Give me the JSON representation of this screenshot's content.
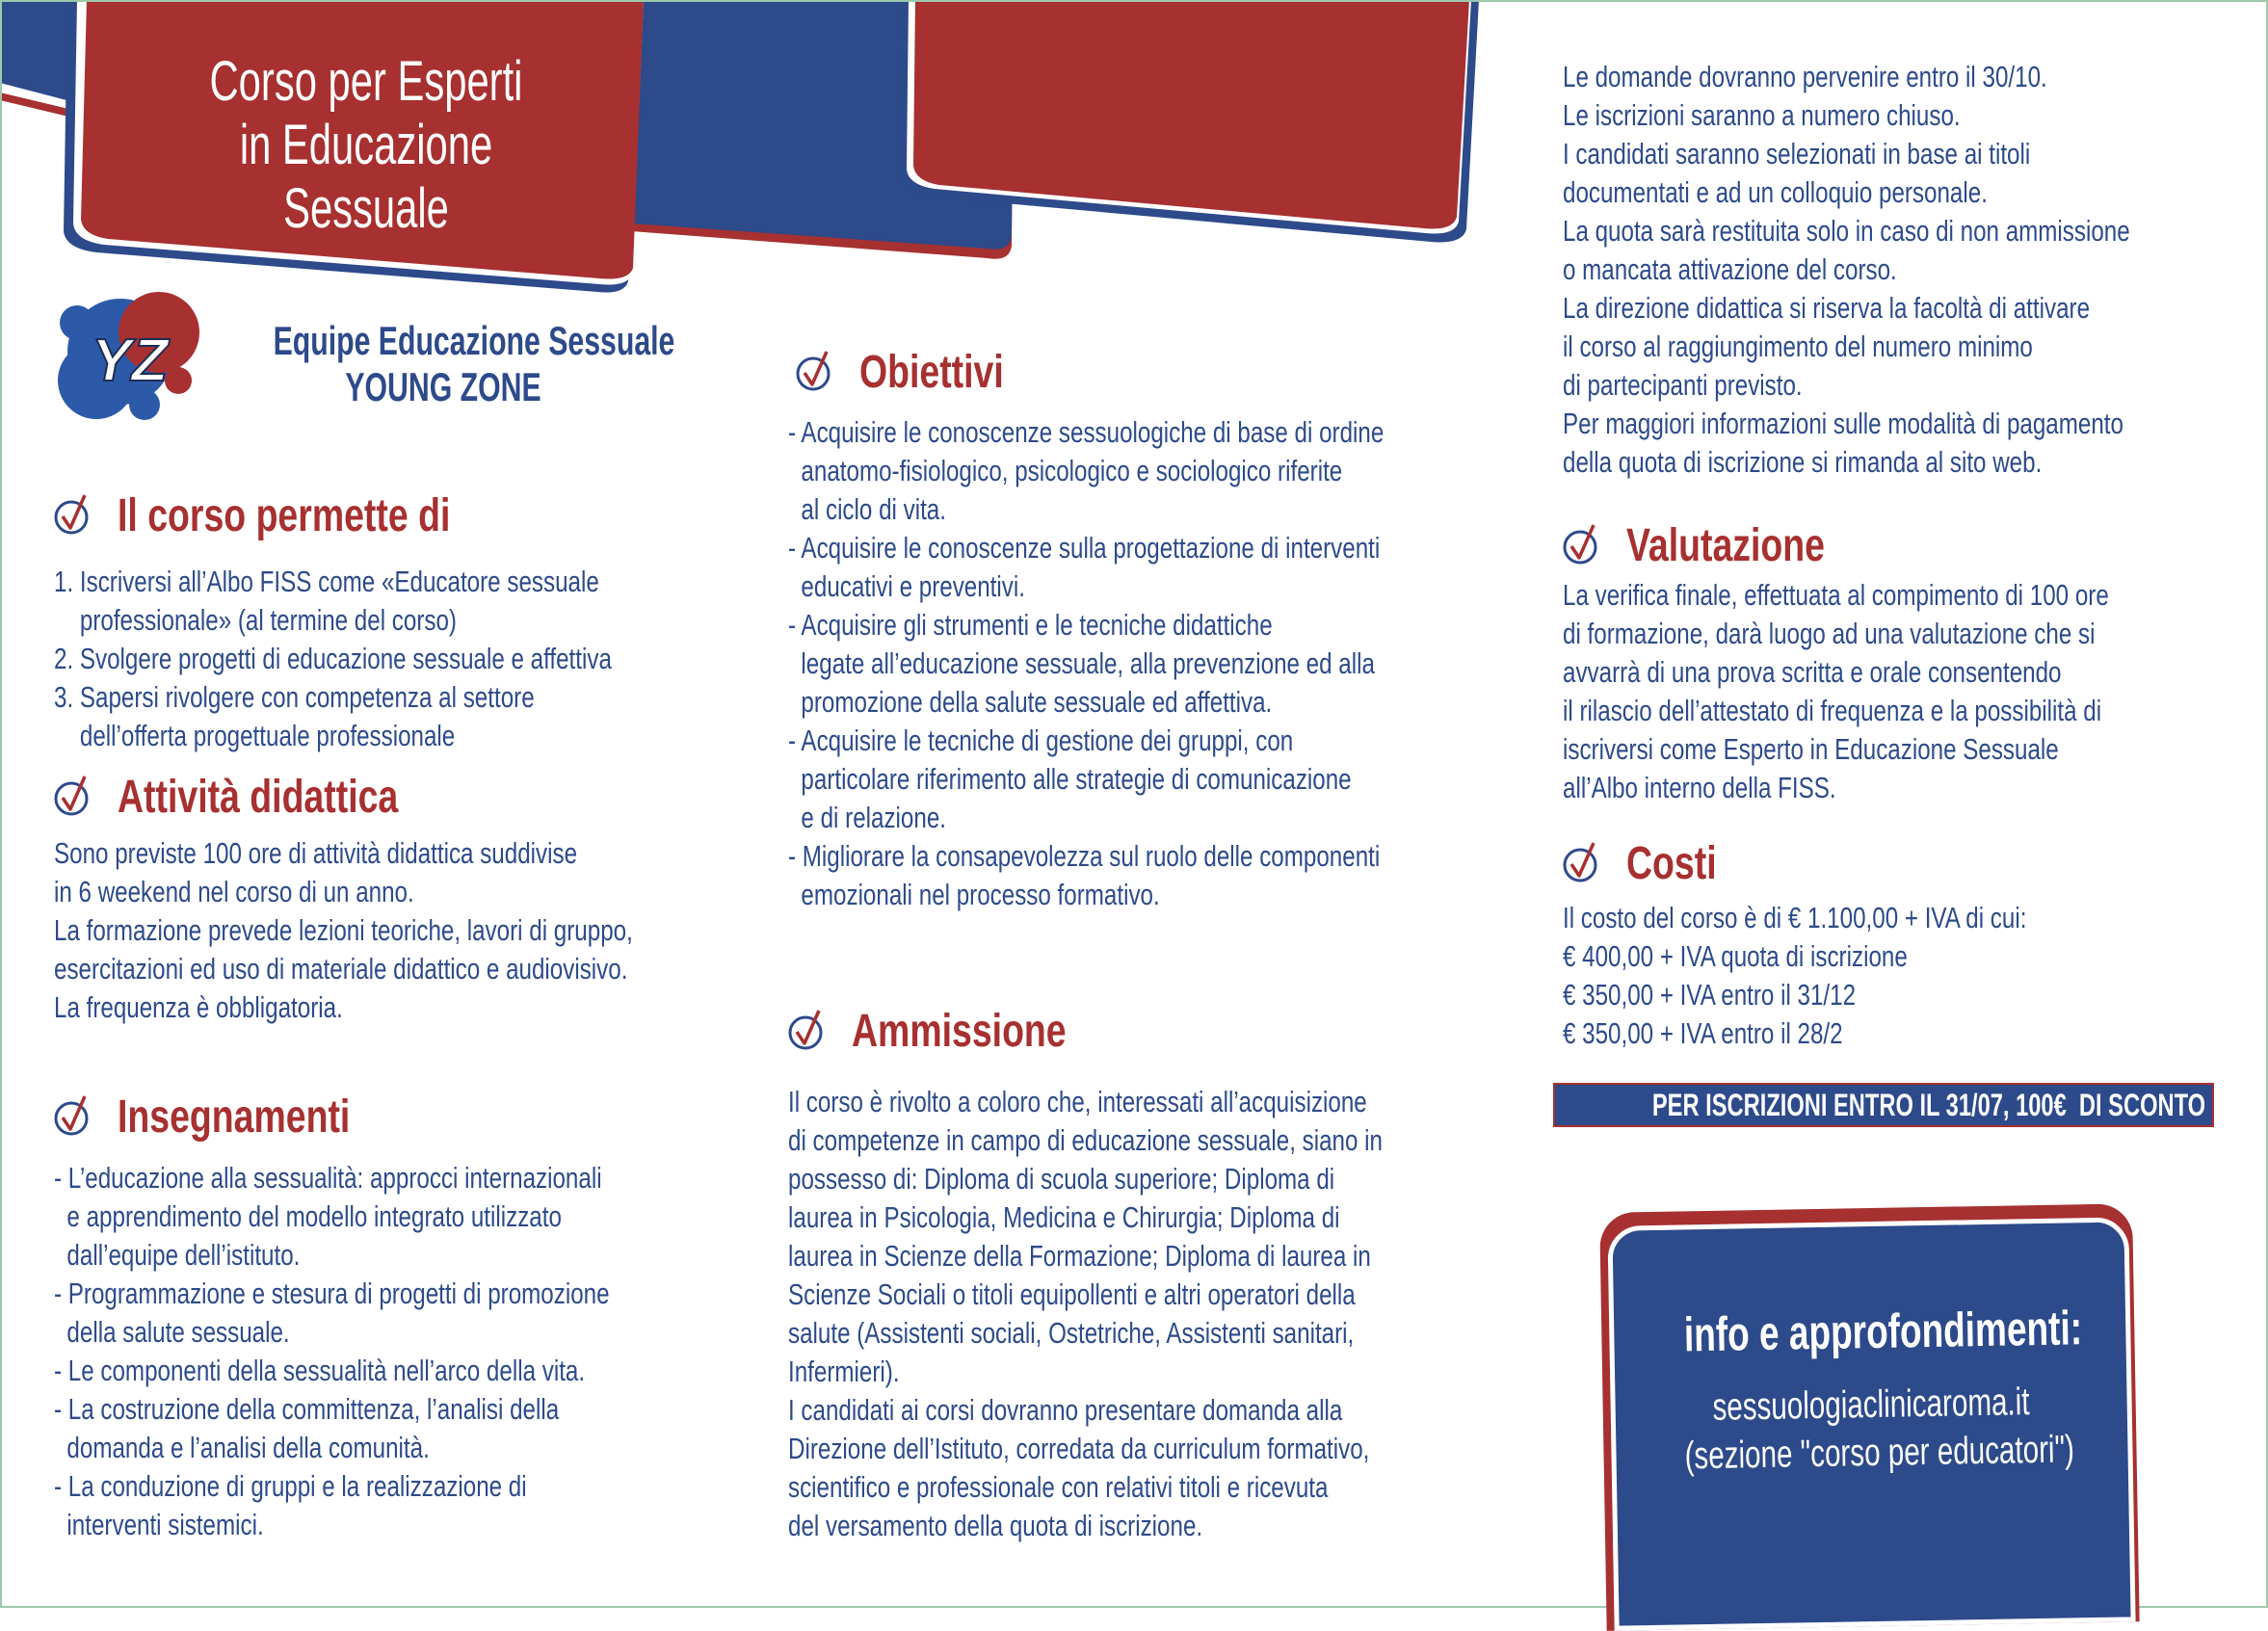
{
  "colors": {
    "red": "#a73030",
    "blue": "#2d4a8a"
  },
  "header": {
    "title_lines": [
      "Corso per Esperti",
      "in Educazione",
      "Sessuale"
    ]
  },
  "logo": {
    "text": "YZ",
    "lines": [
      "Equipe Educazione Sessuale",
      "YOUNG ZONE"
    ]
  },
  "icons": {
    "section": "check-circle-icon"
  },
  "sections": {
    "corso": {
      "title": "Il corso permette di",
      "lines": [
        "1. Iscriversi all’Albo FISS come «Educatore sessuale",
        "    professionale» (al termine del corso)",
        "2. Svolgere progetti di educazione sessuale e affettiva",
        "3. Sapersi rivolgere con competenza al settore",
        "    dell’offerta progettuale professionale"
      ]
    },
    "attivita": {
      "title": "Attività didattica",
      "lines": [
        "Sono previste 100 ore di attività didattica suddivise",
        "in 6 weekend nel corso di un anno.",
        "La formazione prevede lezioni teoriche, lavori di gruppo,",
        "esercitazioni ed uso di materiale didattico e audiovisivo.",
        "La frequenza è obbligatoria."
      ]
    },
    "insegnamenti": {
      "title": "Insegnamenti",
      "lines": [
        "- L’educazione alla sessualità: approcci internazionali",
        "  e apprendimento del modello integrato utilizzato",
        "  dall’equipe dell’istituto.",
        "- Programmazione e stesura di progetti di promozione",
        "  della salute sessuale.",
        "- Le componenti della sessualità nell’arco della vita.",
        "- La costruzione della committenza, l’analisi della",
        "  domanda e l’analisi della comunità.",
        "- La conduzione di gruppi e la realizzazione di",
        "  interventi sistemici."
      ]
    },
    "obiettivi": {
      "title": "Obiettivi",
      "lines": [
        "- Acquisire le conoscenze sessuologiche di base di ordine",
        "  anatomo-fisiologico, psicologico e sociologico riferite",
        "  al ciclo di vita.",
        "- Acquisire le conoscenze sulla progettazione di interventi",
        "  educativi e preventivi.",
        "- Acquisire gli strumenti e le tecniche didattiche",
        "  legate all’educazione sessuale, alla prevenzione ed alla",
        "  promozione della salute sessuale ed affettiva.",
        "- Acquisire le tecniche di gestione dei gruppi, con",
        "  particolare riferimento alle strategie di comunicazione",
        "  e di relazione.",
        "- Migliorare la consapevolezza sul ruolo delle componenti",
        "  emozionali nel processo formativo."
      ]
    },
    "ammissione": {
      "title": "Ammissione",
      "lines": [
        "Il corso è rivolto a coloro che, interessati all’acquisizione",
        "di competenze in campo di educazione sessuale, siano in",
        "possesso di: Diploma di scuola superiore; Diploma di",
        "laurea in Psicologia, Medicina e Chirurgia; Diploma di",
        "laurea in Scienze della Formazione; Diploma di laurea in",
        "Scienze Sociali o titoli equipollenti e altri operatori della",
        "salute (Assistenti sociali, Ostetriche, Assistenti sanitari,",
        "Infermieri).",
        "I candidati ai corsi dovranno presentare domanda alla",
        "Direzione dell’Istituto, corredata da curriculum formativo,",
        "scientifico e professionale con relativi titoli e ricevuta",
        "del versamento della quota di iscrizione."
      ]
    },
    "domande": {
      "lines": [
        "Le domande dovranno pervenire entro il 30/10.",
        "Le iscrizioni saranno a numero chiuso.",
        "I candidati saranno selezionati in base ai titoli",
        "documentati e ad un colloquio personale.",
        "La quota sarà restituita solo in caso di non ammissione",
        "o mancata attivazione del corso.",
        "La direzione didattica si riserva la facoltà di attivare",
        "il corso al raggiungimento del numero minimo",
        "di partecipanti previsto.",
        "Per maggiori informazioni sulle modalità di pagamento",
        "della quota di iscrizione si rimanda al sito web."
      ]
    },
    "valutazione": {
      "title": "Valutazione",
      "lines": [
        "La verifica finale, effettuata al compimento di 100 ore",
        "di formazione, darà luogo ad una valutazione che si",
        "avvarrà di una prova scritta e orale consentendo",
        "il rilascio dell’attestato di frequenza e la possibilità di",
        "iscriversi come Esperto in Educazione Sessuale",
        "all’Albo interno della FISS."
      ]
    },
    "costi": {
      "title": "Costi",
      "lines": [
        "Il costo del corso è di € 1.100,00 + IVA di cui:",
        "€ 400,00 + IVA quota di iscrizione",
        "€ 350,00 + IVA entro il 31/12",
        "€ 350,00 + IVA entro il 28/2"
      ]
    }
  },
  "banner": "PER ISCRIZIONI ENTRO IL 31/07, 100€  DI SCONTO",
  "info": {
    "title": "info e approfondimenti:",
    "website": "sessuologiaclinicaroma.it",
    "note": "(sezione \"corso per educatori\")"
  }
}
